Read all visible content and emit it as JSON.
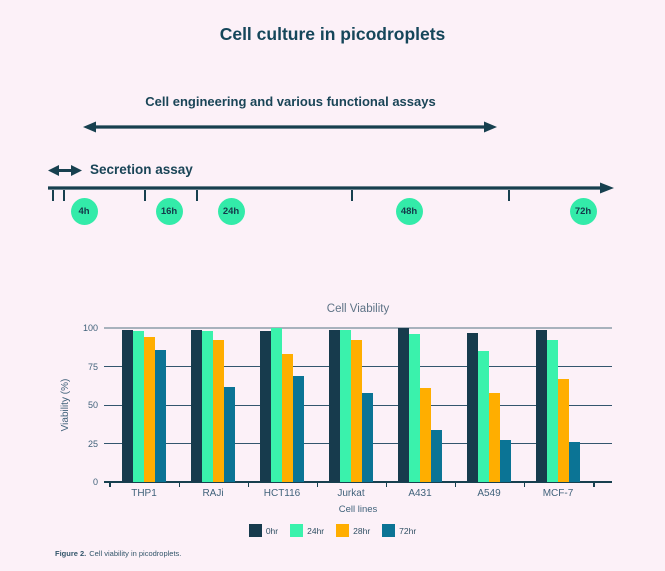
{
  "page": {
    "title": "Cell culture in picodroplets",
    "background": "#FCF1F8",
    "caption_bold": "Figure 2.",
    "caption_rest": "Cell viability in picodroplets."
  },
  "timeline": {
    "engineering_label": "Cell engineering and various functional assays",
    "secretion_label": "Secretion assay",
    "points": [
      "4h",
      "16h",
      "24h",
      "48h",
      "72h"
    ],
    "point_color": "#33EBA9",
    "arrow_color": "#17404F"
  },
  "chart_data": {
    "type": "bar",
    "title": "Cell Viability",
    "xlabel": "Cell lines",
    "ylabel": "Viability (%)",
    "categories": [
      "THP1",
      "RAJi",
      "HCT116",
      "Jurkat",
      "A431",
      "A549",
      "MCF-7"
    ],
    "series": [
      {
        "name": "0hr",
        "color": "#173B4D",
        "values": [
          99,
          99,
          98,
          99,
          100,
          97,
          99
        ]
      },
      {
        "name": "24hr",
        "color": "#3AF2AC",
        "values": [
          98,
          98,
          100,
          99,
          96,
          85,
          92
        ]
      },
      {
        "name": "28hr",
        "color": "#FFAE00",
        "values": [
          94,
          92,
          83,
          92,
          61,
          58,
          67
        ]
      },
      {
        "name": "72hr",
        "color": "#0B7495",
        "values": [
          86,
          62,
          69,
          58,
          34,
          27,
          26
        ]
      }
    ],
    "y_ticks": [
      100,
      75,
      50,
      25,
      0
    ],
    "ylim": [
      0,
      100
    ],
    "grid": true,
    "legend_position": "bottom"
  }
}
